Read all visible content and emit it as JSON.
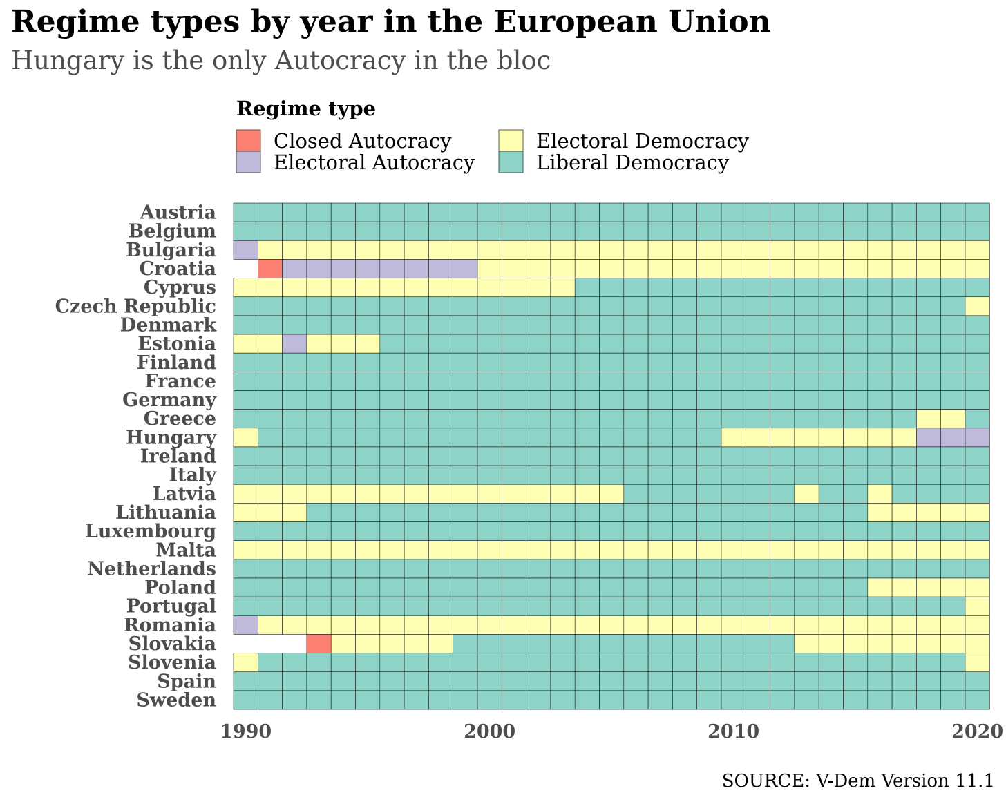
{
  "chart_data": {
    "type": "heatmap",
    "title": "Regime types by year in the European Union",
    "subtitle": "Hungary is the only Autocracy in the bloc",
    "source": "SOURCE: V-Dem Version 11.1",
    "legend_title": "Regime type",
    "legend_position": "top",
    "categories_legend": [
      {
        "code": "CA",
        "label": "Closed Autocracy",
        "color": "#fb8072"
      },
      {
        "code": "EA",
        "label": "Electoral Autocracy",
        "color": "#bebada"
      },
      {
        "code": "ED",
        "label": "Electoral Democracy",
        "color": "#ffffb3"
      },
      {
        "code": "LD",
        "label": "Liberal Democracy",
        "color": "#8dd3c7"
      }
    ],
    "x": {
      "start": 1990,
      "end": 2020,
      "ticks": [
        "1990",
        "2000",
        "2010",
        "2020"
      ]
    },
    "countries": [
      {
        "name": "Austria",
        "segments": [
          [
            1990,
            2020,
            "LD"
          ]
        ]
      },
      {
        "name": "Belgium",
        "segments": [
          [
            1990,
            2020,
            "LD"
          ]
        ]
      },
      {
        "name": "Bulgaria",
        "segments": [
          [
            1990,
            1990,
            "EA"
          ],
          [
            1991,
            2020,
            "ED"
          ]
        ]
      },
      {
        "name": "Croatia",
        "segments": [
          [
            1991,
            1991,
            "CA"
          ],
          [
            1992,
            1999,
            "EA"
          ],
          [
            2000,
            2020,
            "ED"
          ]
        ]
      },
      {
        "name": "Cyprus",
        "segments": [
          [
            1990,
            2003,
            "ED"
          ],
          [
            2004,
            2020,
            "LD"
          ]
        ]
      },
      {
        "name": "Czech Republic",
        "segments": [
          [
            1990,
            2019,
            "LD"
          ],
          [
            2020,
            2020,
            "ED"
          ]
        ]
      },
      {
        "name": "Denmark",
        "segments": [
          [
            1990,
            2020,
            "LD"
          ]
        ]
      },
      {
        "name": "Estonia",
        "segments": [
          [
            1990,
            1991,
            "ED"
          ],
          [
            1992,
            1992,
            "EA"
          ],
          [
            1993,
            1995,
            "ED"
          ],
          [
            1996,
            2020,
            "LD"
          ]
        ]
      },
      {
        "name": "Finland",
        "segments": [
          [
            1990,
            2020,
            "LD"
          ]
        ]
      },
      {
        "name": "France",
        "segments": [
          [
            1990,
            2020,
            "LD"
          ]
        ]
      },
      {
        "name": "Germany",
        "segments": [
          [
            1990,
            2020,
            "LD"
          ]
        ]
      },
      {
        "name": "Greece",
        "segments": [
          [
            1990,
            2017,
            "LD"
          ],
          [
            2018,
            2019,
            "ED"
          ],
          [
            2020,
            2020,
            "LD"
          ]
        ]
      },
      {
        "name": "Hungary",
        "segments": [
          [
            1990,
            1990,
            "ED"
          ],
          [
            1991,
            2009,
            "LD"
          ],
          [
            2010,
            2017,
            "ED"
          ],
          [
            2018,
            2020,
            "EA"
          ]
        ]
      },
      {
        "name": "Ireland",
        "segments": [
          [
            1990,
            2020,
            "LD"
          ]
        ]
      },
      {
        "name": "Italy",
        "segments": [
          [
            1990,
            2020,
            "LD"
          ]
        ]
      },
      {
        "name": "Latvia",
        "segments": [
          [
            1990,
            2005,
            "ED"
          ],
          [
            2006,
            2012,
            "LD"
          ],
          [
            2013,
            2013,
            "ED"
          ],
          [
            2014,
            2015,
            "LD"
          ],
          [
            2016,
            2016,
            "ED"
          ],
          [
            2017,
            2020,
            "LD"
          ]
        ]
      },
      {
        "name": "Lithuania",
        "segments": [
          [
            1990,
            1992,
            "ED"
          ],
          [
            1993,
            2015,
            "LD"
          ],
          [
            2016,
            2020,
            "ED"
          ]
        ]
      },
      {
        "name": "Luxembourg",
        "segments": [
          [
            1990,
            2020,
            "LD"
          ]
        ]
      },
      {
        "name": "Malta",
        "segments": [
          [
            1990,
            2020,
            "ED"
          ]
        ]
      },
      {
        "name": "Netherlands",
        "segments": [
          [
            1990,
            2020,
            "LD"
          ]
        ]
      },
      {
        "name": "Poland",
        "segments": [
          [
            1990,
            2015,
            "LD"
          ],
          [
            2016,
            2020,
            "ED"
          ]
        ]
      },
      {
        "name": "Portugal",
        "segments": [
          [
            1990,
            2019,
            "LD"
          ],
          [
            2020,
            2020,
            "ED"
          ]
        ]
      },
      {
        "name": "Romania",
        "segments": [
          [
            1990,
            1990,
            "EA"
          ],
          [
            1991,
            2020,
            "ED"
          ]
        ]
      },
      {
        "name": "Slovakia",
        "segments": [
          [
            1993,
            1993,
            "CA"
          ],
          [
            1994,
            1998,
            "ED"
          ],
          [
            1999,
            2012,
            "LD"
          ],
          [
            2013,
            2020,
            "ED"
          ]
        ]
      },
      {
        "name": "Slovenia",
        "segments": [
          [
            1990,
            1990,
            "ED"
          ],
          [
            1991,
            2019,
            "LD"
          ],
          [
            2020,
            2020,
            "ED"
          ]
        ]
      },
      {
        "name": "Spain",
        "segments": [
          [
            1990,
            2020,
            "LD"
          ]
        ]
      },
      {
        "name": "Sweden",
        "segments": [
          [
            1990,
            2020,
            "LD"
          ]
        ]
      }
    ]
  }
}
